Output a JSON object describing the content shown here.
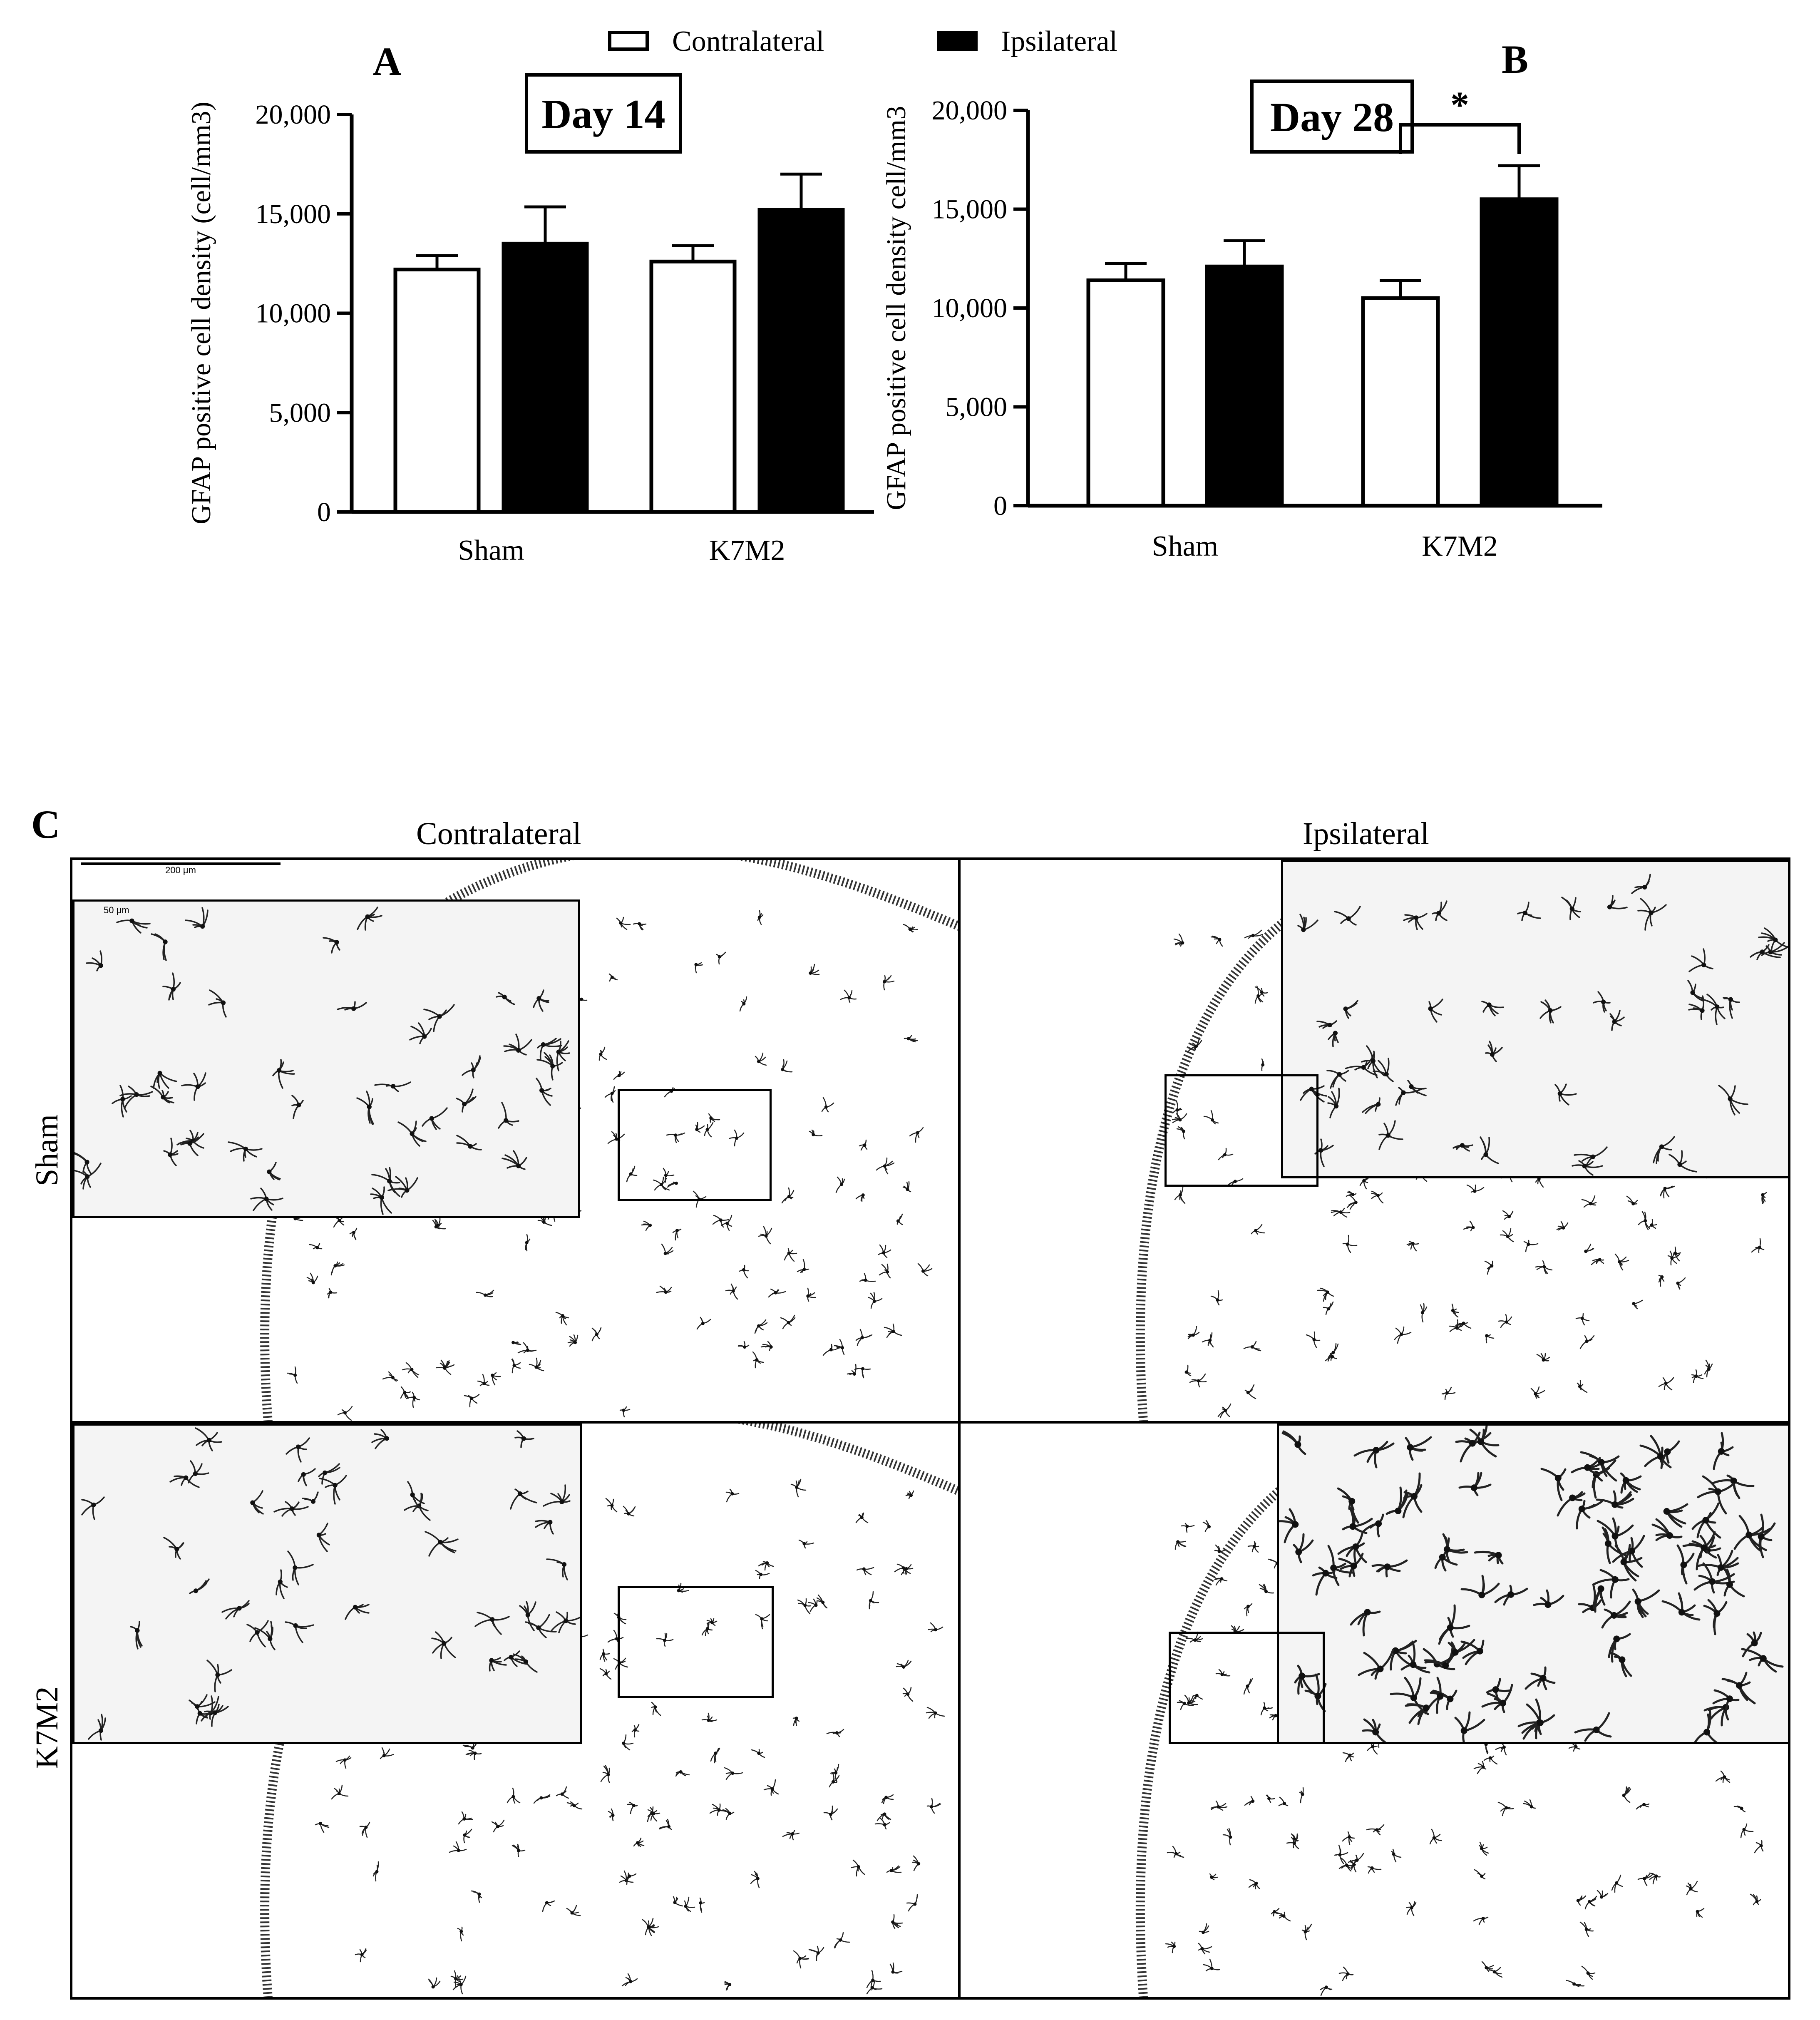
{
  "legend": {
    "items": [
      "Contralateral",
      "Ipsilateral"
    ],
    "colors": [
      "#ffffff",
      "#000000"
    ],
    "placement": "top-center"
  },
  "chart_data": [
    {
      "type": "bar",
      "panel": "A",
      "title": "Day 14",
      "ylabel": "GFAP positive cell density (cell/mm3)",
      "xlabel": "",
      "categories": [
        "Sham",
        "K7M2"
      ],
      "ylim": [
        0,
        20000
      ],
      "yticks": [
        0,
        5000,
        10000,
        15000,
        20000
      ],
      "ytick_labels": [
        "0",
        "5,000",
        "10,000",
        "15,000",
        "20,000"
      ],
      "series": [
        {
          "name": "Contralateral",
          "values": [
            12200,
            12600
          ],
          "errors": [
            700,
            800
          ]
        },
        {
          "name": "Ipsilateral",
          "values": [
            13500,
            15200
          ],
          "errors": [
            1850,
            1800
          ]
        }
      ],
      "annotations": []
    },
    {
      "type": "bar",
      "panel": "B",
      "title": "Day 28",
      "ylabel": "GFAP positive cell density cell/mm3",
      "xlabel": "",
      "categories": [
        "Sham",
        "K7M2"
      ],
      "ylim": [
        0,
        20000
      ],
      "yticks": [
        0,
        5000,
        10000,
        15000,
        20000
      ],
      "ytick_labels": [
        "0",
        "5,000",
        "10,000",
        "15,000",
        "20,000"
      ],
      "series": [
        {
          "name": "Contralateral",
          "values": [
            11400,
            10500
          ],
          "errors": [
            850,
            900
          ]
        },
        {
          "name": "Ipsilateral",
          "values": [
            12100,
            15500
          ],
          "errors": [
            1300,
            1700
          ]
        }
      ],
      "annotations": [
        "*"
      ]
    }
  ],
  "panel_c": {
    "letter": "C",
    "columns": [
      "Contralateral",
      "Ipsilateral"
    ],
    "rows": [
      "Sham",
      "K7M2"
    ],
    "scale_bar": "200 μm",
    "inset_scale_bar": "50 μm"
  }
}
